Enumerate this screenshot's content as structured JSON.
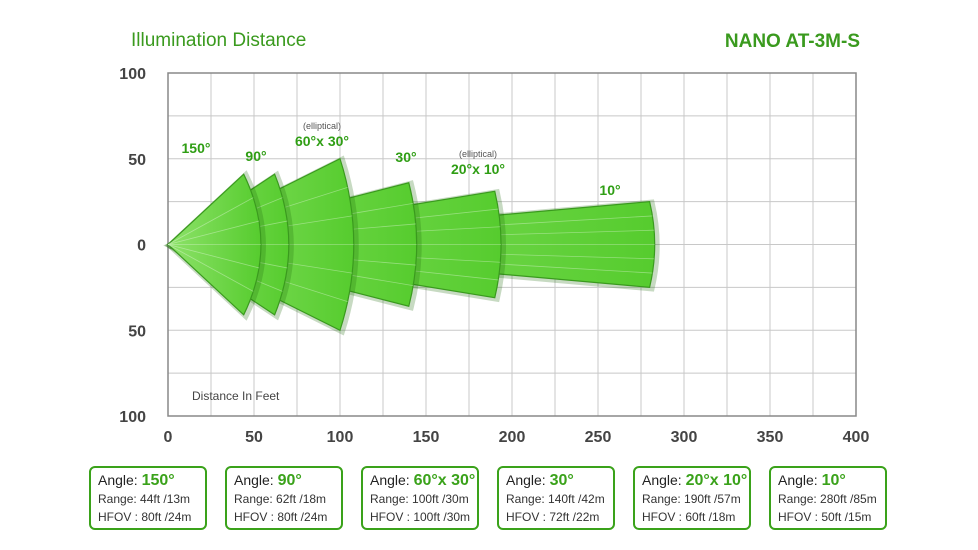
{
  "header": {
    "title": "Illumination Distance",
    "model": "NANO AT-3M-S"
  },
  "chart_data": {
    "type": "area",
    "title": "Illumination Distance",
    "xlabel": "Distance In Feet",
    "ylabel": "",
    "xlim": [
      0,
      400
    ],
    "ylim": [
      -100,
      100
    ],
    "x_ticks": [
      0,
      50,
      100,
      150,
      200,
      250,
      300,
      350,
      400
    ],
    "x_tick_labels": [
      "0",
      "50",
      "100",
      "150",
      "200",
      "250",
      "300",
      "350",
      "400"
    ],
    "y_ticks": [
      100,
      50,
      0,
      -50,
      -100
    ],
    "y_tick_labels": [
      "100",
      "50",
      "0",
      "50",
      "100"
    ],
    "grid": true,
    "series": [
      {
        "name": "150°",
        "range_ft": 44,
        "half_height_ft": 41,
        "note": ""
      },
      {
        "name": "90°",
        "range_ft": 62,
        "half_height_ft": 41,
        "note": ""
      },
      {
        "name": "60°x 30°",
        "range_ft": 100,
        "half_height_ft": 50,
        "note": "(elliptical)"
      },
      {
        "name": "30°",
        "range_ft": 140,
        "half_height_ft": 36,
        "note": ""
      },
      {
        "name": "20°x 10°",
        "range_ft": 190,
        "half_height_ft": 31,
        "note": "(elliptical)"
      },
      {
        "name": "10°",
        "range_ft": 280,
        "half_height_ft": 25,
        "note": ""
      }
    ],
    "colors": {
      "fill": "#5fd13a",
      "edge": "#3a9a1e",
      "label": "#2f9e14"
    }
  },
  "cards": [
    {
      "angle_label": "Angle:",
      "angle": "150°",
      "range": "Range: 44ft /13m",
      "hfov": "HFOV : 80ft /24m"
    },
    {
      "angle_label": "Angle:",
      "angle": "90°",
      "range": "Range: 62ft /18m",
      "hfov": "HFOV : 80ft /24m"
    },
    {
      "angle_label": "Angle:",
      "angle": "60°x 30°",
      "range": "Range: 100ft /30m",
      "hfov": "HFOV : 100ft /30m"
    },
    {
      "angle_label": "Angle:",
      "angle": "30°",
      "range": "Range: 140ft /42m",
      "hfov": "HFOV : 72ft /22m"
    },
    {
      "angle_label": "Angle:",
      "angle": "20°x 10°",
      "range": "Range: 190ft /57m",
      "hfov": "HFOV : 60ft /18m"
    },
    {
      "angle_label": "Angle:",
      "angle": "10°",
      "range": "Range: 280ft /85m",
      "hfov": "HFOV : 50ft /15m"
    }
  ]
}
